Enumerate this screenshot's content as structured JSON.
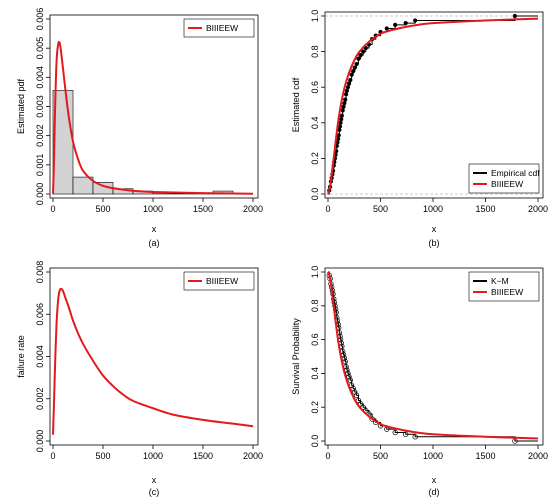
{
  "colors": {
    "fit": "#e31a1c",
    "empirical": "#000000",
    "hist_fill": "#d3d3d3",
    "refline": "#bbbbbb"
  },
  "chart_data": [
    {
      "id": "a",
      "type": "bar",
      "subtitle": "(a)",
      "xlabel": "x",
      "ylabel": "Estimated pdf",
      "xlim": [
        0,
        2000
      ],
      "ylim": [
        0,
        0.006
      ],
      "xticks": [
        "0",
        "500",
        "1000",
        "1500",
        "2000"
      ],
      "yticks": [
        "0.000",
        "0.001",
        "0.002",
        "0.003",
        "0.004",
        "0.005",
        "0.006"
      ],
      "histogram": {
        "bin_edges": [
          0,
          200,
          400,
          600,
          800,
          1000,
          1200,
          1400,
          1600,
          1800
        ],
        "density": [
          0.00355,
          0.00058,
          0.0004,
          0.00018,
          0.0001,
          1e-05,
          1e-05,
          1e-05,
          0.0001
        ]
      },
      "series": [
        {
          "name": "BIIIEEW",
          "x": [
            0,
            10,
            20,
            35,
            50,
            65,
            80,
            100,
            130,
            160,
            200,
            250,
            300,
            400,
            500,
            600,
            800,
            1000,
            1500,
            2000
          ],
          "y": [
            0.0,
            0.0011,
            0.0028,
            0.0045,
            0.0051,
            0.0052,
            0.0049,
            0.0043,
            0.0034,
            0.0026,
            0.0018,
            0.0012,
            0.0008,
            0.00045,
            0.00028,
            0.0002,
            0.00011,
            7e-05,
            3e-05,
            1e-05
          ]
        }
      ],
      "legend": {
        "position": "top-right",
        "entries": [
          "BIIIEEW"
        ]
      }
    },
    {
      "id": "b",
      "type": "line",
      "subtitle": "(b)",
      "xlabel": "x",
      "ylabel": "Estimated cdf",
      "xlim": [
        0,
        2000
      ],
      "ylim": [
        0,
        1
      ],
      "xticks": [
        "0",
        "500",
        "1000",
        "1500",
        "2000"
      ],
      "yticks": [
        "0.0",
        "0.2",
        "0.4",
        "0.6",
        "0.8",
        "1.0"
      ],
      "reference_lines": [
        0,
        1
      ],
      "empirical_points": {
        "x": [
          12,
          20,
          28,
          35,
          42,
          48,
          55,
          60,
          66,
          72,
          78,
          84,
          90,
          96,
          102,
          108,
          114,
          120,
          126,
          132,
          140,
          148,
          156,
          164,
          172,
          180,
          190,
          200,
          212,
          225,
          240,
          255,
          272,
          290,
          310,
          335,
          360,
          390,
          420,
          455,
          500,
          560,
          640,
          740,
          830,
          1780
        ],
        "y": [
          0.02,
          0.04,
          0.07,
          0.09,
          0.11,
          0.13,
          0.16,
          0.18,
          0.2,
          0.22,
          0.24,
          0.27,
          0.29,
          0.31,
          0.33,
          0.36,
          0.38,
          0.4,
          0.42,
          0.44,
          0.47,
          0.49,
          0.51,
          0.53,
          0.56,
          0.58,
          0.6,
          0.62,
          0.64,
          0.67,
          0.69,
          0.71,
          0.73,
          0.76,
          0.78,
          0.8,
          0.82,
          0.84,
          0.87,
          0.89,
          0.91,
          0.93,
          0.95,
          0.96,
          0.975,
          1.0
        ]
      },
      "series": [
        {
          "name": "Empirical cdf",
          "style": "step"
        },
        {
          "name": "BIIIEEW",
          "x": [
            0,
            20,
            50,
            100,
            150,
            200,
            250,
            300,
            400,
            500,
            600,
            800,
            1000,
            1500,
            2000
          ],
          "y": [
            0.0,
            0.04,
            0.18,
            0.42,
            0.58,
            0.68,
            0.75,
            0.8,
            0.86,
            0.9,
            0.92,
            0.945,
            0.96,
            0.975,
            0.985
          ]
        }
      ],
      "legend": {
        "position": "bottom-right",
        "entries": [
          "Empirical cdf",
          "BIIIEEW"
        ]
      }
    },
    {
      "id": "c",
      "type": "line",
      "subtitle": "(c)",
      "xlabel": "x",
      "ylabel": "failure rate",
      "xlim": [
        0,
        2000
      ],
      "ylim": [
        0,
        0.008
      ],
      "xticks": [
        "0",
        "500",
        "1000",
        "1500",
        "2000"
      ],
      "yticks": [
        "0.000",
        "0.002",
        "0.004",
        "0.006",
        "0.008"
      ],
      "series": [
        {
          "name": "BIIIEEW",
          "x": [
            0,
            10,
            20,
            35,
            50,
            65,
            80,
            100,
            130,
            160,
            200,
            250,
            300,
            400,
            500,
            600,
            700,
            800,
            1000,
            1200,
            1500,
            1800,
            2000
          ],
          "y": [
            0.0003,
            0.0018,
            0.0035,
            0.0055,
            0.0066,
            0.0071,
            0.0072,
            0.0071,
            0.0067,
            0.0063,
            0.0057,
            0.0051,
            0.0046,
            0.0038,
            0.0031,
            0.0026,
            0.0022,
            0.0019,
            0.00155,
            0.00125,
            0.001,
            0.00082,
            0.0007
          ]
        }
      ],
      "legend": {
        "position": "top-right",
        "entries": [
          "BIIIEEW"
        ]
      }
    },
    {
      "id": "d",
      "type": "line",
      "subtitle": "(d)",
      "xlabel": "x",
      "ylabel": "Survival Probability",
      "xlim": [
        0,
        2000
      ],
      "ylim": [
        0,
        1
      ],
      "xticks": [
        "0",
        "500",
        "1000",
        "1500",
        "2000"
      ],
      "yticks": [
        "0.0",
        "0.2",
        "0.4",
        "0.6",
        "0.8",
        "1.0"
      ],
      "km_points": {
        "x": [
          12,
          20,
          28,
          35,
          42,
          48,
          55,
          60,
          66,
          72,
          78,
          84,
          90,
          96,
          102,
          108,
          114,
          120,
          126,
          132,
          140,
          148,
          156,
          164,
          172,
          180,
          190,
          200,
          212,
          225,
          240,
          255,
          272,
          290,
          310,
          335,
          360,
          390,
          420,
          455,
          500,
          560,
          640,
          740,
          830,
          1780
        ],
        "y": [
          0.98,
          0.96,
          0.93,
          0.91,
          0.89,
          0.87,
          0.84,
          0.82,
          0.8,
          0.78,
          0.76,
          0.73,
          0.71,
          0.69,
          0.67,
          0.64,
          0.62,
          0.6,
          0.58,
          0.56,
          0.53,
          0.51,
          0.49,
          0.47,
          0.44,
          0.42,
          0.4,
          0.38,
          0.36,
          0.33,
          0.31,
          0.29,
          0.27,
          0.24,
          0.22,
          0.2,
          0.18,
          0.16,
          0.13,
          0.11,
          0.09,
          0.07,
          0.05,
          0.04,
          0.025,
          0.0
        ]
      },
      "series": [
        {
          "name": "K−M",
          "style": "step"
        },
        {
          "name": "BIIIEEW",
          "x": [
            0,
            20,
            50,
            100,
            150,
            200,
            250,
            300,
            400,
            500,
            600,
            800,
            1000,
            1500,
            2000
          ],
          "y": [
            1.0,
            0.96,
            0.82,
            0.58,
            0.42,
            0.32,
            0.25,
            0.2,
            0.14,
            0.1,
            0.08,
            0.055,
            0.04,
            0.025,
            0.015
          ]
        }
      ],
      "legend": {
        "position": "top-right",
        "entries": [
          "K−M",
          "BIIIEEW"
        ]
      }
    }
  ]
}
